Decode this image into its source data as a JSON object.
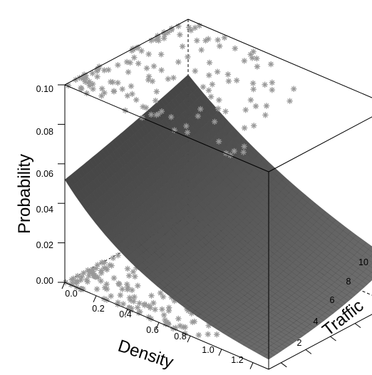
{
  "chart_data": {
    "type": "surface3d",
    "title": "",
    "axes": {
      "x": {
        "label": "Density",
        "range": [
          0,
          1.3
        ],
        "ticks": [
          "0.0",
          "0.2",
          "0.4",
          "0.6",
          "0.8",
          "1.0",
          "1.2"
        ]
      },
      "y": {
        "label": "Traffic",
        "range": [
          1,
          11
        ],
        "ticks": [
          "2",
          "4",
          "6",
          "8",
          "10"
        ]
      },
      "z": {
        "label": "Probability",
        "range": [
          0,
          0.1
        ],
        "ticks": [
          "0.00",
          "0.02",
          "0.04",
          "0.06",
          "0.08",
          "0.10"
        ]
      }
    },
    "surface": {
      "description_values": {
        "corner_density0_traffic1": 0.052,
        "corner_density0_traffic11": 0.072,
        "corner_density1_3_traffic1": 0.005,
        "corner_density1_3_traffic11": 0.022
      },
      "color": "#555555"
    },
    "observations": {
      "marker": "asterisk",
      "color": "#999999",
      "shown_on": [
        "bottom-plane (response 0)",
        "top-plane (response 1)"
      ]
    }
  }
}
